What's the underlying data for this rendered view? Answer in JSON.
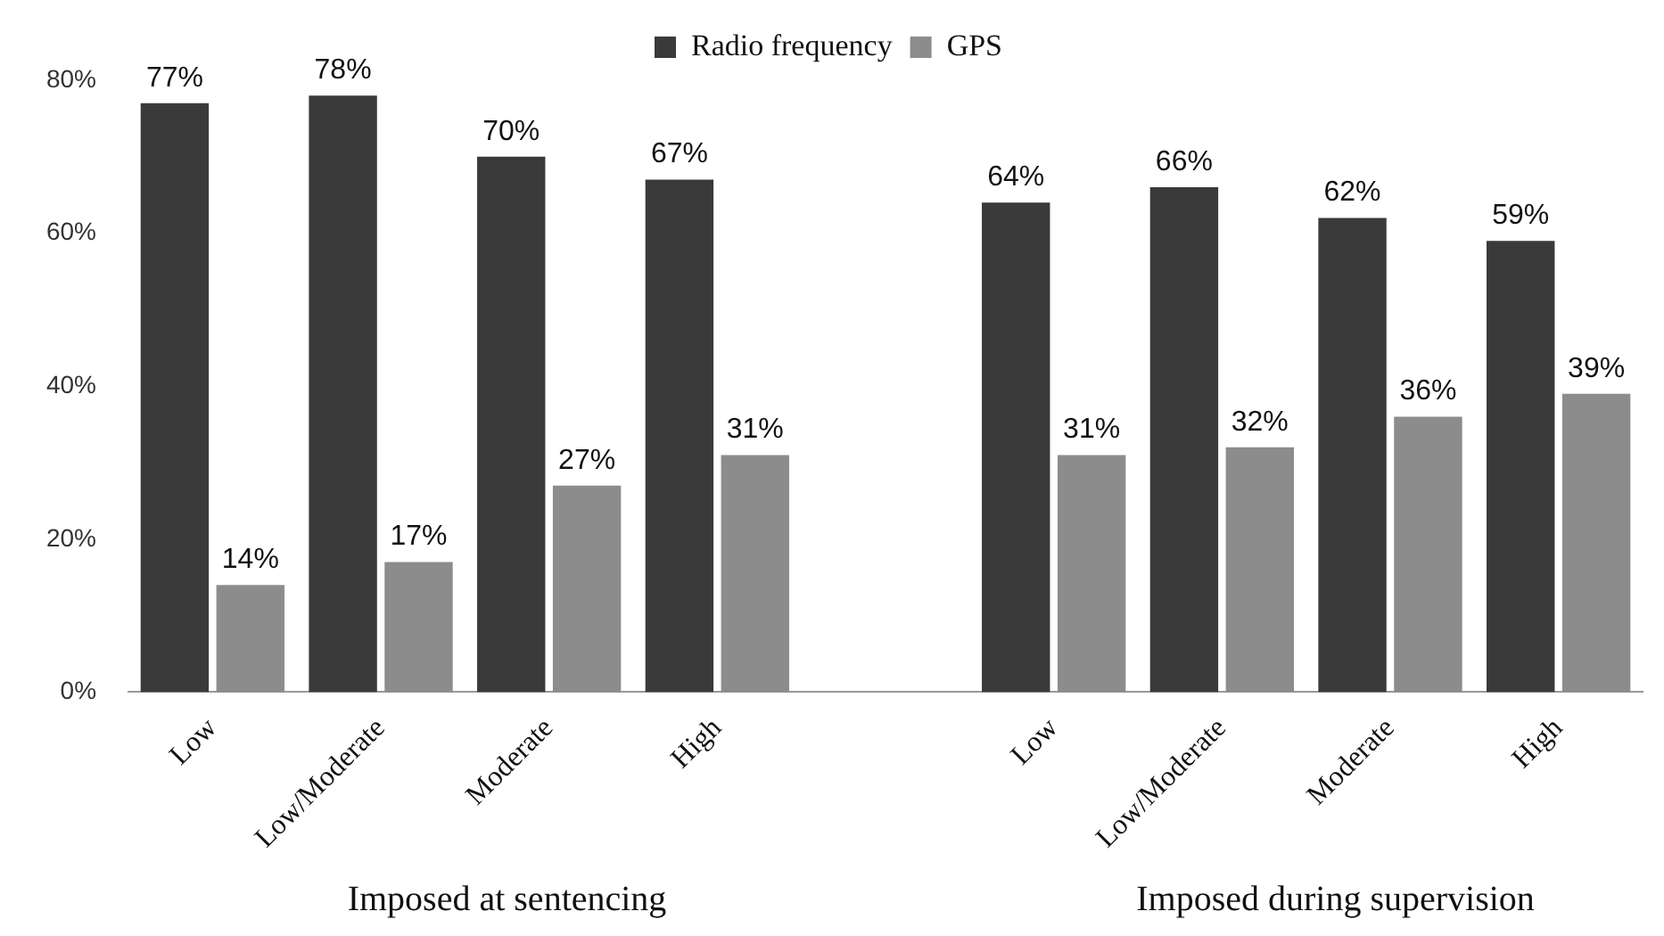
{
  "chart_data": {
    "type": "bar",
    "categories": [
      "Low",
      "Low/Moderate",
      "Moderate",
      "High",
      null,
      "Low",
      "Low/Moderate",
      "Moderate",
      "High"
    ],
    "series": [
      {
        "name": "Radio frequency",
        "color": "#3a3a3a",
        "values": [
          77,
          78,
          70,
          67,
          null,
          64,
          66,
          62,
          59
        ],
        "value_labels": [
          "77%",
          "78%",
          "70%",
          "67%",
          null,
          "64%",
          "66%",
          "62%",
          "59%"
        ]
      },
      {
        "name": "GPS",
        "color": "#8c8c8c",
        "values": [
          14,
          17,
          27,
          31,
          null,
          31,
          32,
          36,
          39
        ],
        "value_labels": [
          "14%",
          "17%",
          "27%",
          "31%",
          null,
          "31%",
          "32%",
          "36%",
          "39%"
        ]
      }
    ],
    "ylim": [
      0,
      80
    ],
    "yticks": [
      {
        "value": 0,
        "label": "0%"
      },
      {
        "value": 20,
        "label": "20%"
      },
      {
        "value": 40,
        "label": "40%"
      },
      {
        "value": 60,
        "label": "60%"
      },
      {
        "value": 80,
        "label": "80%"
      }
    ],
    "legend": "top",
    "annotations": [
      "Imposed at sentencing",
      "Imposed during supervision"
    ]
  }
}
